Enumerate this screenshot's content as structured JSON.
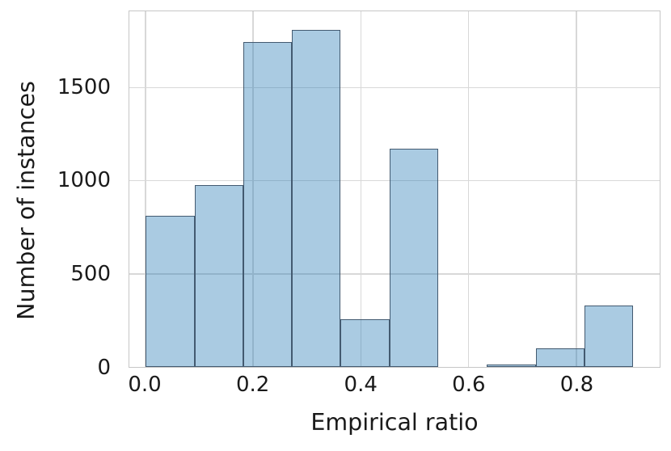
{
  "chart_data": {
    "type": "histogram",
    "xlabel": "Empirical ratio",
    "ylabel": "Number of instances",
    "bin_edges": [
      0.0,
      0.091,
      0.181,
      0.272,
      0.362,
      0.453,
      0.544,
      0.634,
      0.725,
      0.815,
      0.906
    ],
    "counts": [
      810,
      975,
      1745,
      1810,
      255,
      1170,
      0,
      12,
      100,
      330
    ],
    "xticks": {
      "values": [
        0.0,
        0.2,
        0.4,
        0.6,
        0.8
      ],
      "labels": [
        "0.0",
        "0.2",
        "0.4",
        "0.6",
        "0.8"
      ]
    },
    "yticks": {
      "values": [
        0,
        500,
        1000,
        1500
      ],
      "labels": [
        "0",
        "500",
        "1000",
        "1500"
      ]
    },
    "xlim": [
      -0.03,
      0.955
    ],
    "ylim": [
      0,
      1909
    ],
    "grid": true,
    "legend": "none",
    "colors": {
      "bar_fill": "rgba(31,119,180,0.38)",
      "bar_edge": "#435a70",
      "gridline": "#d8d8d8",
      "spine": "#c6c6c6",
      "text": "#1a1a1a",
      "background": "#ffffff"
    }
  }
}
